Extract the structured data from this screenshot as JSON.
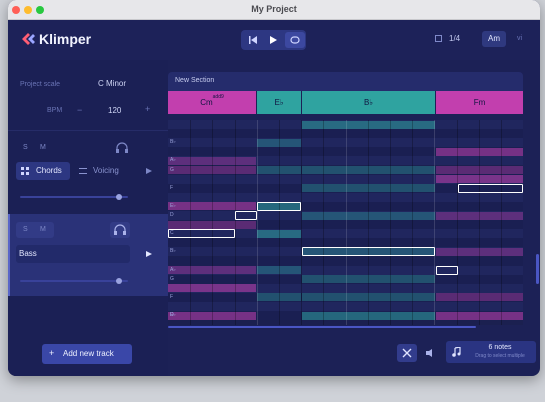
{
  "window": {
    "title": "My Project"
  },
  "app": {
    "name": "Klimper"
  },
  "toolbar": {
    "time_signature": "1/4",
    "key_button": "Am",
    "mode_label": "vi"
  },
  "project": {
    "scale_label": "Project scale",
    "scale_value": "C Minor",
    "bpm_label": "BPM",
    "bpm_value": "120",
    "bpm_minus": "−",
    "bpm_plus": "+"
  },
  "tracks": [
    {
      "solo": "S",
      "mute": "M",
      "tab_chords": "Chords",
      "tab_voicing": "Voicing",
      "volume": 0.85
    },
    {
      "solo": "S",
      "mute": "M",
      "name": "Bass",
      "volume": 0.85
    }
  ],
  "add_track": {
    "plus": "+",
    "label": "Add new track"
  },
  "section": {
    "name": "New Section"
  },
  "chords": [
    {
      "root": "Cm",
      "ext": "add9",
      "color": "#c23fae"
    },
    {
      "root": "E♭",
      "ext": "",
      "color": "#2fa3a0"
    },
    {
      "root": "B♭",
      "ext": "",
      "color": "#2fa3a0"
    },
    {
      "root": "Fm",
      "ext": "",
      "color": "#c23fae"
    }
  ],
  "note_labels": [
    "B♭",
    "A♭",
    "G",
    "F",
    "E♭",
    "D",
    "C",
    "B♭",
    "A♭",
    "G",
    "F",
    "E♭",
    "D"
  ],
  "footer": {
    "notes_count": "6 notes",
    "notes_hint": "Drag to select multiple"
  },
  "colors": {
    "accent": "#3a47a8",
    "minor_chord": "#c23fae",
    "major_chord": "#2fa3a0",
    "background": "#1c2156"
  }
}
